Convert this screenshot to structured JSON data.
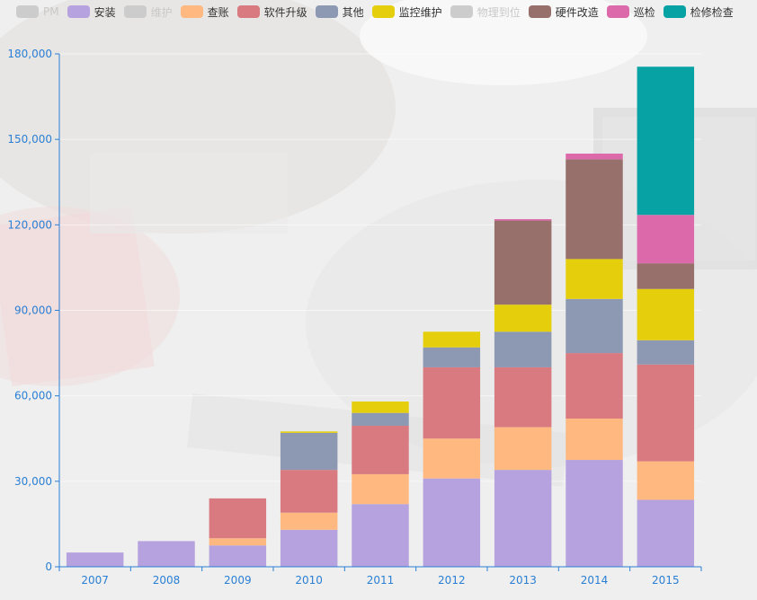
{
  "chart_data": {
    "type": "bar",
    "stacked": true,
    "categories": [
      "2007",
      "2008",
      "2009",
      "2010",
      "2011",
      "2012",
      "2013",
      "2014",
      "2015"
    ],
    "ylim": [
      0,
      180000
    ],
    "y_ticks": [
      "0",
      "30,000",
      "60,000",
      "90,000",
      "120,000",
      "150,000",
      "180,000"
    ],
    "y_tick_values": [
      0,
      30000,
      60000,
      90000,
      120000,
      150000,
      180000
    ],
    "grid": true,
    "legend_position": "top",
    "series": [
      {
        "name": "PM",
        "visible": false,
        "color": "#cccccc",
        "values": [
          0,
          0,
          0,
          0,
          0,
          0,
          0,
          0,
          0
        ]
      },
      {
        "name": "安装",
        "visible": true,
        "color": "#b6a2de",
        "values": [
          5000,
          9000,
          7500,
          13000,
          22000,
          31000,
          34000,
          37500,
          23500
        ]
      },
      {
        "name": "维护",
        "visible": false,
        "color": "#cccccc",
        "values": [
          0,
          0,
          0,
          0,
          0,
          0,
          0,
          0,
          0
        ]
      },
      {
        "name": "查账",
        "visible": true,
        "color": "#ffb980",
        "values": [
          0,
          0,
          2500,
          6000,
          10500,
          14000,
          15000,
          14500,
          13500
        ]
      },
      {
        "name": "软件升级",
        "visible": true,
        "color": "#d87a80",
        "values": [
          0,
          0,
          14000,
          15000,
          17000,
          25000,
          21000,
          23000,
          34000
        ]
      },
      {
        "name": "其他",
        "visible": true,
        "color": "#8d98b3",
        "values": [
          0,
          0,
          0,
          13000,
          4500,
          7000,
          12500,
          19000,
          8500
        ]
      },
      {
        "name": "监控维护",
        "visible": true,
        "color": "#e5cf0d",
        "values": [
          0,
          0,
          0,
          500,
          4000,
          5500,
          9500,
          14000,
          18000
        ]
      },
      {
        "name": "物理到位",
        "visible": false,
        "color": "#cccccc",
        "values": [
          0,
          0,
          0,
          0,
          0,
          0,
          0,
          0,
          0
        ]
      },
      {
        "name": "硬件改造",
        "visible": true,
        "color": "#97706c",
        "values": [
          0,
          0,
          0,
          0,
          0,
          0,
          29500,
          35000,
          9000
        ]
      },
      {
        "name": "巡检",
        "visible": true,
        "color": "#dc69aa",
        "values": [
          0,
          0,
          0,
          0,
          0,
          0,
          500,
          2000,
          17000
        ]
      },
      {
        "name": "检修检查",
        "visible": true,
        "color": "#07a2a4",
        "values": [
          0,
          0,
          0,
          0,
          0,
          0,
          0,
          0,
          52000
        ]
      }
    ]
  },
  "colors": {
    "axis": "#2a7fd4",
    "legend_text": "#333333",
    "legend_off_text": "#c8c8c8"
  }
}
